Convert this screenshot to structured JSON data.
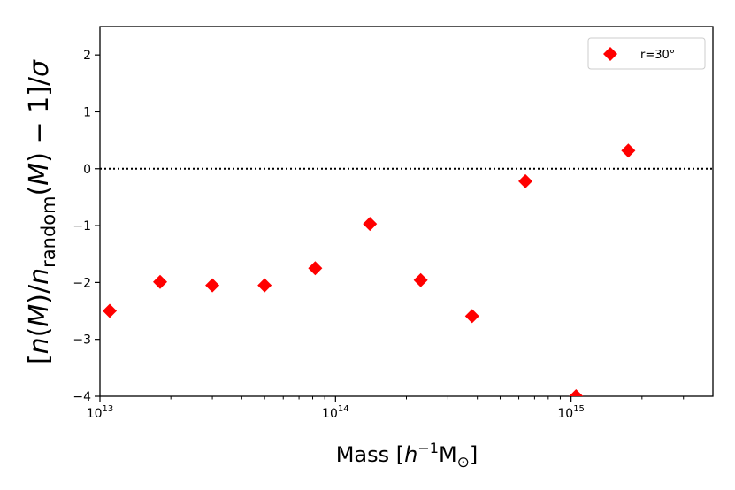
{
  "chart_data": {
    "type": "scatter",
    "xlabel": "Mass [h⁻¹M⊙]",
    "ylabel": "[n(M)/n_random(M) − 1]/σ",
    "x_scale": "log",
    "xlim": [
      10000000000000.0,
      4000000000000000.0
    ],
    "ylim": [
      -4,
      2.5
    ],
    "x_ticks": [
      {
        "value": 10000000000000.0,
        "base": "10",
        "exp": "13"
      },
      {
        "value": 100000000000000.0,
        "base": "10",
        "exp": "14"
      },
      {
        "value": 1000000000000000.0,
        "base": "10",
        "exp": "15"
      }
    ],
    "y_ticks": [
      2,
      1,
      0,
      -1,
      -2,
      -3,
      -4
    ],
    "reference_line": {
      "y": 0,
      "style": "dotted"
    },
    "grid": false,
    "legend": {
      "position": "top-right"
    },
    "series": [
      {
        "name": "r=30°",
        "marker": "diamond",
        "color": "#ff0000",
        "points": [
          {
            "x": 11000000000000.0,
            "y": -2.5
          },
          {
            "x": 18000000000000.0,
            "y": -1.99
          },
          {
            "x": 30000000000000.0,
            "y": -2.05
          },
          {
            "x": 50000000000000.0,
            "y": -2.05
          },
          {
            "x": 82000000000000.0,
            "y": -1.75
          },
          {
            "x": 140000000000000.0,
            "y": -0.97
          },
          {
            "x": 230000000000000.0,
            "y": -1.96
          },
          {
            "x": 380000000000000.0,
            "y": -2.59
          },
          {
            "x": 640000000000000.0,
            "y": -0.22
          },
          {
            "x": 1050000000000000.0,
            "y": -4.0
          },
          {
            "x": 1750000000000000.0,
            "y": 0.32
          }
        ]
      }
    ]
  }
}
